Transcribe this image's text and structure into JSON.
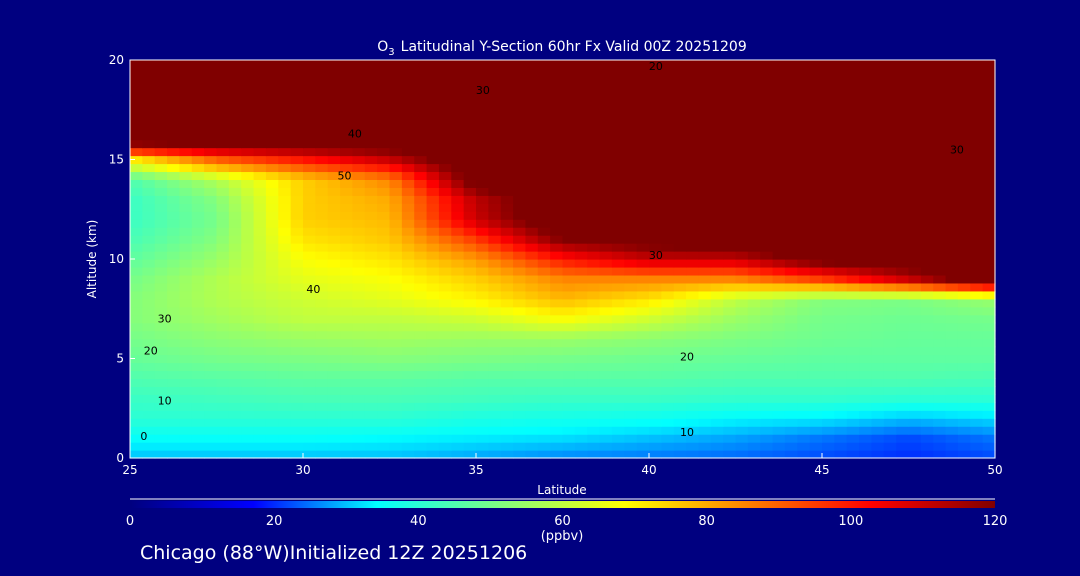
{
  "chart_data": {
    "type": "heatmap",
    "title": "Latitudinal Y-Section 60hr  Fx Valid 00Z 20251209",
    "title_species": "O",
    "title_subscript": "3",
    "xlabel": "Latitude",
    "ylabel": "Altitude (km)",
    "xlim": [
      25,
      50
    ],
    "ylim": [
      0,
      20
    ],
    "xticks": [
      25,
      30,
      35,
      40,
      45,
      50
    ],
    "yticks": [
      0,
      5,
      10,
      15,
      20
    ],
    "lat": [
      25,
      27.5,
      30,
      32.5,
      35,
      37.5,
      40,
      42.5,
      45,
      47.5,
      50
    ],
    "alt": [
      0,
      1,
      2,
      3,
      4,
      5,
      6,
      7,
      8,
      9,
      10,
      11,
      12,
      13,
      14,
      15,
      16,
      17,
      18,
      19,
      20
    ],
    "values": [
      [
        30,
        30,
        30,
        30,
        28,
        26,
        25,
        24,
        22,
        20,
        22
      ],
      [
        35,
        35,
        35,
        34,
        33,
        32,
        30,
        28,
        25,
        22,
        25
      ],
      [
        40,
        40,
        40,
        40,
        38,
        37,
        36,
        34,
        33,
        30,
        32
      ],
      [
        42,
        43,
        44,
        44,
        43,
        42,
        42,
        41,
        41,
        40,
        40
      ],
      [
        45,
        46,
        47,
        47,
        46,
        46,
        46,
        45,
        45,
        45,
        44
      ],
      [
        48,
        50,
        51,
        52,
        51,
        50,
        49,
        48,
        47,
        47,
        47
      ],
      [
        50,
        53,
        55,
        56,
        55,
        55,
        53,
        51,
        49,
        48,
        48
      ],
      [
        52,
        56,
        60,
        60,
        62,
        68,
        62,
        55,
        50,
        49,
        50
      ],
      [
        52,
        58,
        62,
        65,
        70,
        78,
        72,
        60,
        52,
        51,
        55
      ],
      [
        50,
        58,
        65,
        68,
        75,
        85,
        85,
        85,
        95,
        110,
        130
      ],
      [
        47,
        55,
        68,
        72,
        82,
        100,
        110,
        110,
        125,
        130,
        130
      ],
      [
        44,
        52,
        72,
        76,
        95,
        120,
        125,
        130,
        130,
        130,
        130
      ],
      [
        42,
        50,
        75,
        78,
        110,
        130,
        130,
        130,
        130,
        130,
        130
      ],
      [
        42,
        52,
        75,
        80,
        112,
        130,
        130,
        130,
        130,
        130,
        130
      ],
      [
        45,
        58,
        75,
        85,
        125,
        130,
        130,
        130,
        130,
        130,
        130
      ],
      [
        70,
        90,
        100,
        110,
        130,
        130,
        130,
        130,
        130,
        130,
        130
      ],
      [
        130,
        130,
        130,
        130,
        130,
        130,
        130,
        130,
        130,
        130,
        130
      ],
      [
        130,
        130,
        130,
        130,
        130,
        130,
        130,
        130,
        130,
        130,
        130
      ],
      [
        130,
        130,
        130,
        130,
        130,
        130,
        130,
        130,
        130,
        130,
        130
      ],
      [
        130,
        130,
        130,
        130,
        130,
        130,
        130,
        130,
        130,
        130,
        130
      ],
      [
        130,
        130,
        130,
        130,
        130,
        130,
        130,
        130,
        130,
        130,
        130
      ]
    ],
    "contour_labels": [
      {
        "text": "20",
        "lat": 40.2,
        "alt": 19.7
      },
      {
        "text": "30",
        "lat": 35.2,
        "alt": 18.5
      },
      {
        "text": "40",
        "lat": 31.5,
        "alt": 16.3
      },
      {
        "text": "50",
        "lat": 31.2,
        "alt": 14.2
      },
      {
        "text": "30",
        "lat": 48.9,
        "alt": 15.5
      },
      {
        "text": "30",
        "lat": 40.2,
        "alt": 10.2
      },
      {
        "text": "40",
        "lat": 30.3,
        "alt": 8.5
      },
      {
        "text": "30",
        "lat": 26.0,
        "alt": 7.0
      },
      {
        "text": "20",
        "lat": 25.6,
        "alt": 5.4
      },
      {
        "text": "20",
        "lat": 41.1,
        "alt": 5.1
      },
      {
        "text": "10",
        "lat": 26.0,
        "alt": 2.9
      },
      {
        "text": "10",
        "lat": 41.1,
        "alt": 1.3
      },
      {
        "text": "0",
        "lat": 25.4,
        "alt": 1.1
      }
    ],
    "colorbar": {
      "range": [
        0,
        120
      ],
      "ticks": [
        "0",
        "20",
        "40",
        "60",
        "80",
        "100",
        "120"
      ],
      "unit": "(ppbv)",
      "colors": [
        "#00007f",
        "#0000ff",
        "#00ffff",
        "#80ff80",
        "#ffff00",
        "#ff8000",
        "#ff0000",
        "#800000"
      ]
    }
  },
  "footer": "Chicago (88°W)Initialized 12Z 20251206"
}
